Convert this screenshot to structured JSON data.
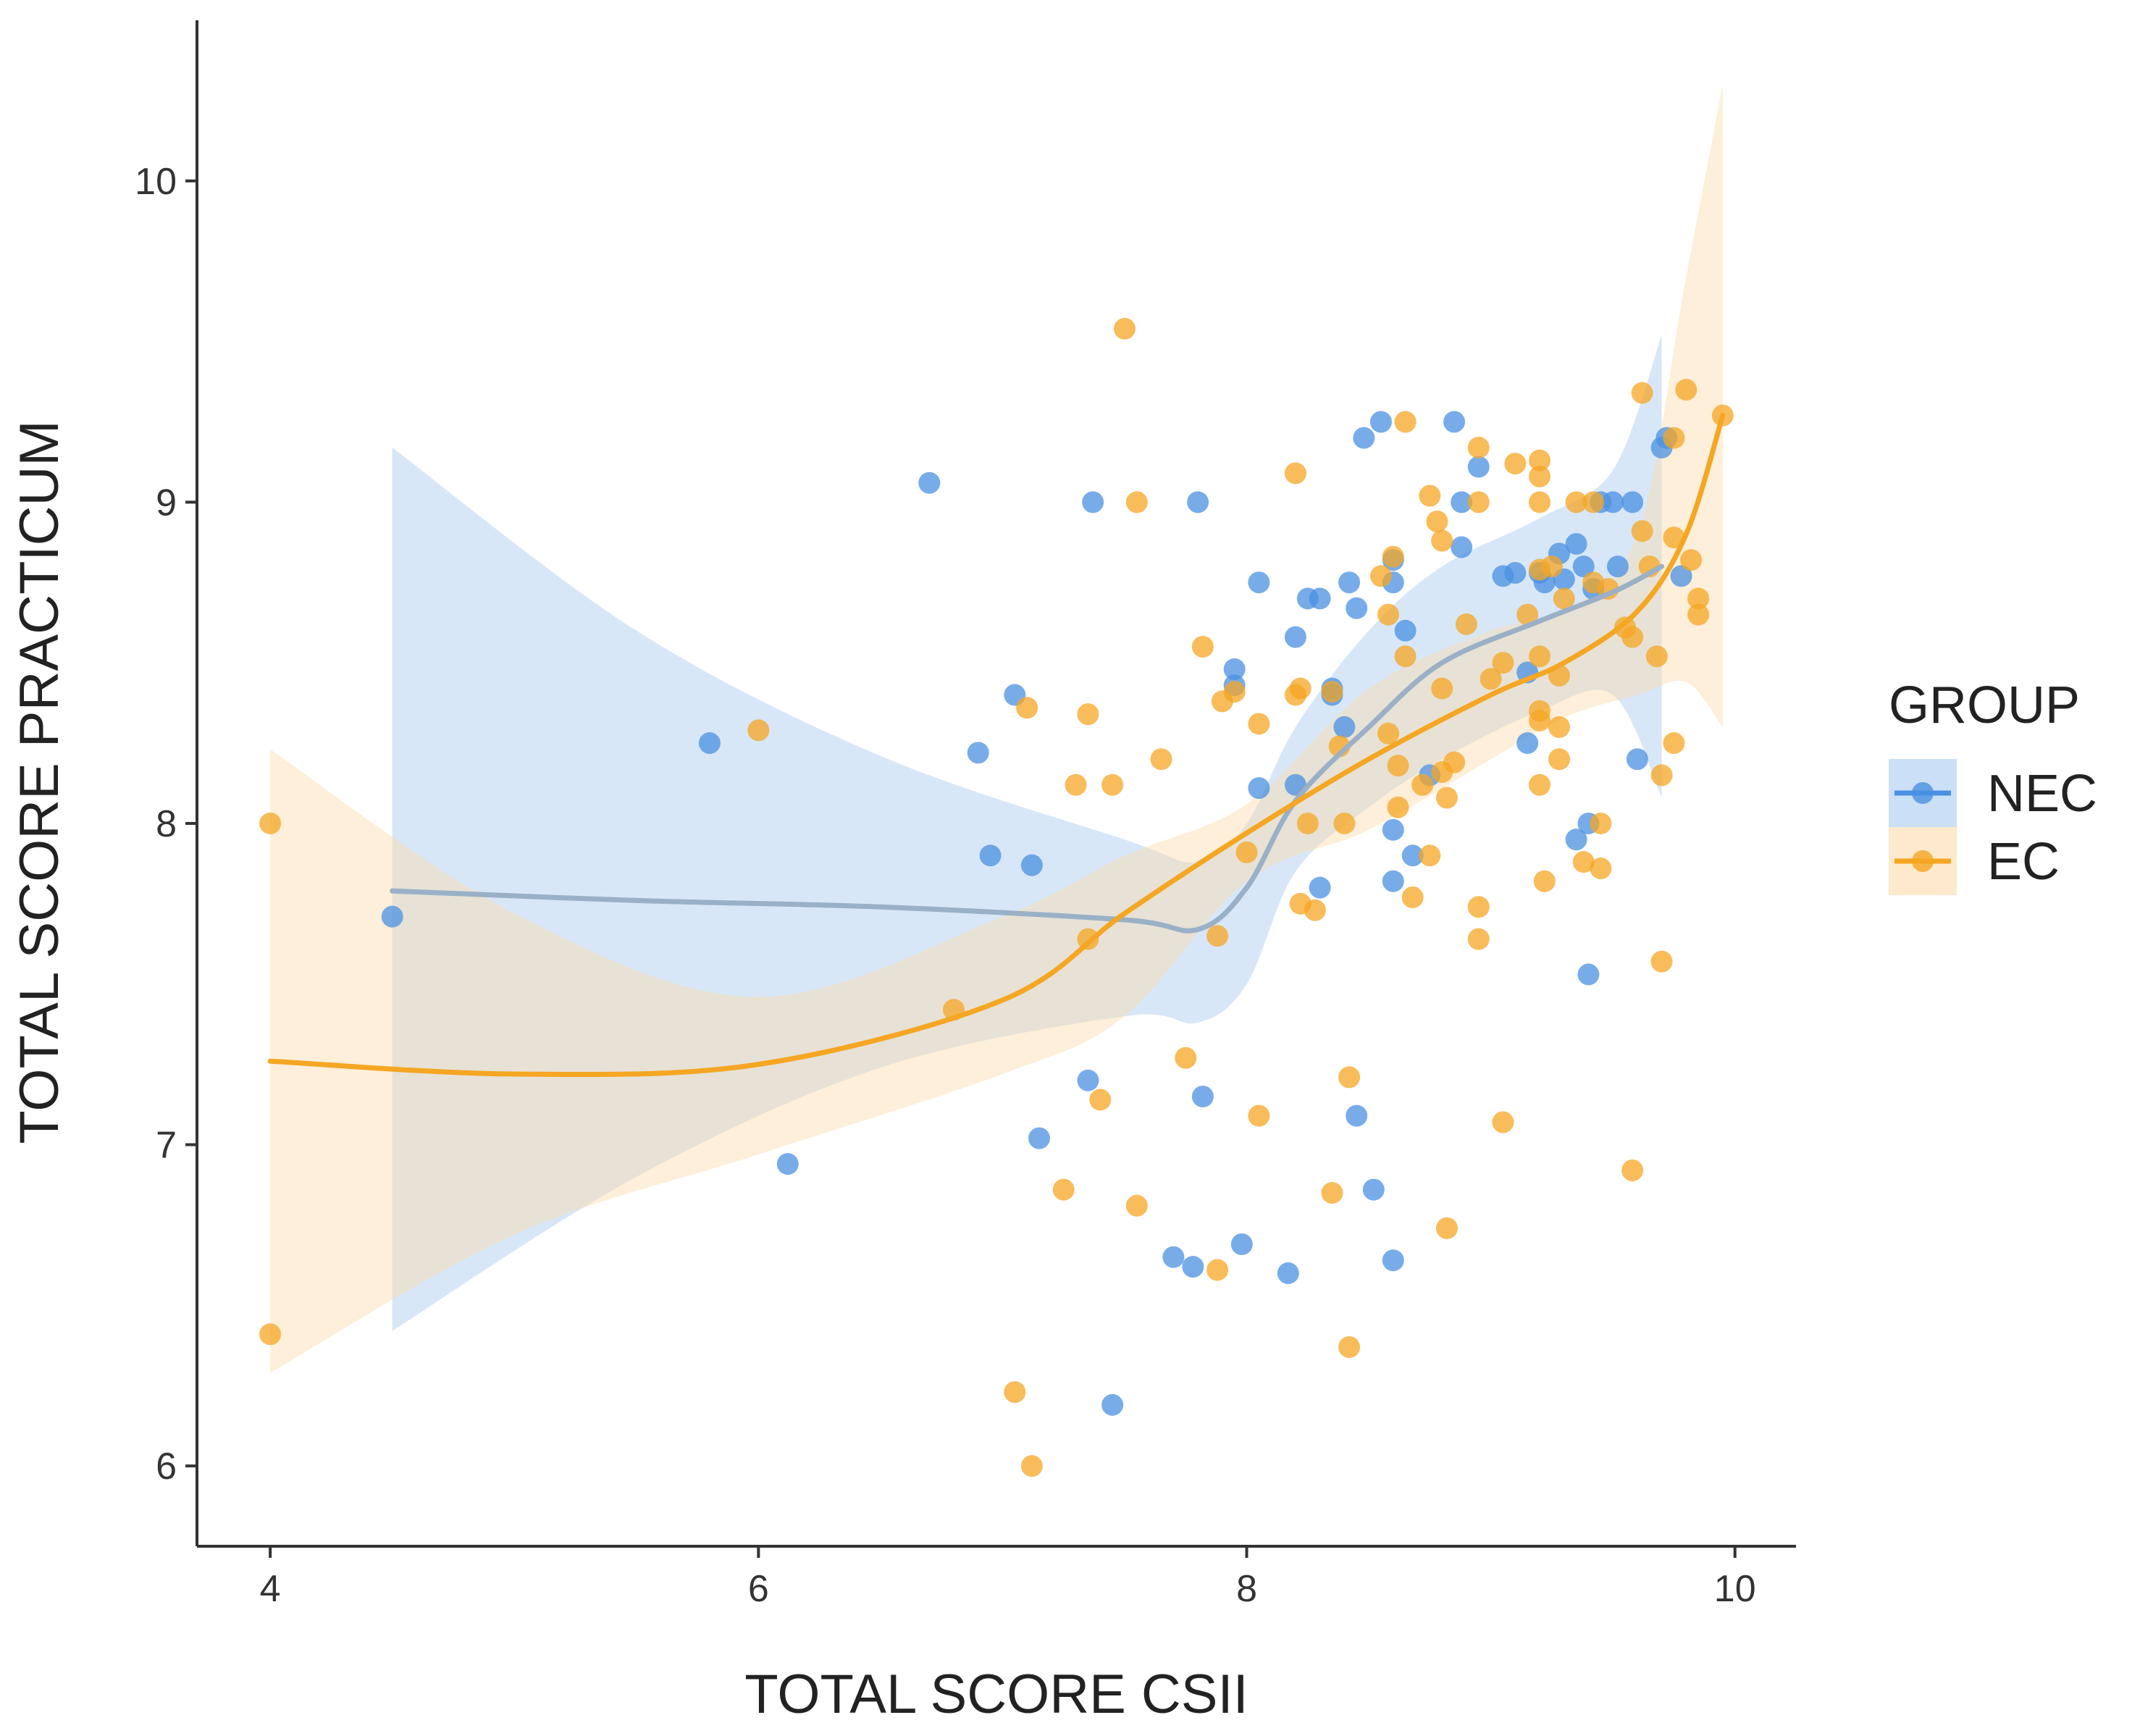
{
  "chart_data": {
    "type": "scatter",
    "xlabel": "TOTAL SCORE CSII",
    "ylabel": "TOTAL SCORE PRACTICUM",
    "xlim": [
      3.7,
      10.25
    ],
    "ylim": [
      5.75,
      10.5
    ],
    "xticks": [
      "4",
      "6",
      "8",
      "10"
    ],
    "yticks": [
      "6",
      "7",
      "8",
      "9",
      "10"
    ],
    "grid": false,
    "legend": {
      "title": "GROUP",
      "position": "right"
    },
    "series": [
      {
        "name": "NEC",
        "color": "#4a90e2",
        "band_color": "#a9c9f0",
        "line_color": "#9ab0c6",
        "points": [
          [
            4.5,
            7.71
          ],
          [
            5.8,
            8.25
          ],
          [
            6.12,
            6.94
          ],
          [
            6.7,
            9.06
          ],
          [
            6.9,
            8.22
          ],
          [
            6.95,
            7.9
          ],
          [
            7.05,
            8.4
          ],
          [
            7.12,
            7.87
          ],
          [
            7.15,
            7.02
          ],
          [
            7.35,
            7.2
          ],
          [
            7.37,
            9.0
          ],
          [
            7.45,
            6.19
          ],
          [
            7.7,
            6.65
          ],
          [
            7.78,
            6.62
          ],
          [
            7.8,
            9.0
          ],
          [
            7.82,
            7.15
          ],
          [
            7.95,
            8.43
          ],
          [
            7.95,
            8.48
          ],
          [
            7.98,
            6.69
          ],
          [
            8.05,
            8.75
          ],
          [
            8.05,
            8.11
          ],
          [
            8.17,
            6.6
          ],
          [
            8.2,
            8.58
          ],
          [
            8.2,
            8.12
          ],
          [
            8.25,
            8.7
          ],
          [
            8.3,
            8.7
          ],
          [
            8.3,
            7.8
          ],
          [
            8.35,
            8.42
          ],
          [
            8.35,
            8.4
          ],
          [
            8.4,
            8.3
          ],
          [
            8.42,
            8.75
          ],
          [
            8.45,
            8.67
          ],
          [
            8.45,
            7.09
          ],
          [
            8.48,
            9.2
          ],
          [
            8.52,
            6.86
          ],
          [
            8.55,
            9.25
          ],
          [
            8.6,
            8.82
          ],
          [
            8.6,
            8.75
          ],
          [
            8.6,
            7.98
          ],
          [
            8.6,
            7.82
          ],
          [
            8.6,
            6.64
          ],
          [
            8.65,
            8.6
          ],
          [
            8.68,
            7.9
          ],
          [
            8.75,
            8.15
          ],
          [
            8.85,
            9.25
          ],
          [
            8.88,
            9.0
          ],
          [
            8.88,
            8.86
          ],
          [
            8.95,
            9.11
          ],
          [
            9.05,
            8.77
          ],
          [
            9.1,
            8.78
          ],
          [
            9.15,
            8.47
          ],
          [
            9.15,
            8.25
          ],
          [
            9.2,
            8.78
          ],
          [
            9.22,
            8.75
          ],
          [
            9.28,
            8.84
          ],
          [
            9.3,
            8.76
          ],
          [
            9.35,
            8.87
          ],
          [
            9.35,
            7.95
          ],
          [
            9.38,
            8.8
          ],
          [
            9.4,
            8.0
          ],
          [
            9.4,
            7.53
          ],
          [
            9.42,
            8.73
          ],
          [
            9.45,
            9.0
          ],
          [
            9.5,
            9.0
          ],
          [
            9.52,
            8.8
          ],
          [
            9.58,
            9.0
          ],
          [
            9.6,
            8.2
          ],
          [
            9.7,
            9.17
          ],
          [
            9.72,
            9.2
          ],
          [
            9.78,
            8.77
          ]
        ],
        "trend": [
          [
            4.5,
            7.79
          ],
          [
            5.5,
            7.76
          ],
          [
            6.5,
            7.74
          ],
          [
            7.5,
            7.7
          ],
          [
            7.8,
            7.67
          ],
          [
            8.0,
            7.8
          ],
          [
            8.2,
            8.07
          ],
          [
            8.5,
            8.3
          ],
          [
            8.8,
            8.5
          ],
          [
            9.2,
            8.63
          ],
          [
            9.5,
            8.72
          ],
          [
            9.7,
            8.8
          ]
        ],
        "band_upper": [
          [
            4.5,
            9.17
          ],
          [
            5.5,
            8.6
          ],
          [
            6.5,
            8.21
          ],
          [
            7.5,
            7.95
          ],
          [
            7.8,
            7.88
          ],
          [
            8.0,
            8.0
          ],
          [
            8.2,
            8.3
          ],
          [
            8.5,
            8.6
          ],
          [
            8.8,
            8.8
          ],
          [
            9.2,
            8.95
          ],
          [
            9.5,
            9.1
          ],
          [
            9.7,
            9.52
          ]
        ],
        "band_lower": [
          [
            4.5,
            6.42
          ],
          [
            5.5,
            6.9
          ],
          [
            6.5,
            7.24
          ],
          [
            7.5,
            7.4
          ],
          [
            7.8,
            7.38
          ],
          [
            8.0,
            7.5
          ],
          [
            8.2,
            7.85
          ],
          [
            8.5,
            8.05
          ],
          [
            8.8,
            8.2
          ],
          [
            9.2,
            8.35
          ],
          [
            9.5,
            8.4
          ],
          [
            9.7,
            8.08
          ]
        ]
      },
      {
        "name": "EC",
        "color": "#f5a623",
        "band_color": "#fbdcaa",
        "line_color": "#f5a623",
        "points": [
          [
            4.0,
            8.0
          ],
          [
            4.0,
            6.41
          ],
          [
            6.0,
            8.29
          ],
          [
            6.8,
            7.42
          ],
          [
            7.05,
            6.23
          ],
          [
            7.1,
            8.36
          ],
          [
            7.12,
            6.0
          ],
          [
            7.25,
            6.86
          ],
          [
            7.3,
            8.12
          ],
          [
            7.35,
            8.34
          ],
          [
            7.35,
            7.64
          ],
          [
            7.4,
            7.14
          ],
          [
            7.45,
            8.12
          ],
          [
            7.5,
            9.54
          ],
          [
            7.55,
            9.0
          ],
          [
            7.55,
            6.81
          ],
          [
            7.65,
            8.2
          ],
          [
            7.75,
            7.27
          ],
          [
            7.82,
            8.55
          ],
          [
            7.88,
            6.61
          ],
          [
            7.88,
            7.65
          ],
          [
            7.9,
            8.38
          ],
          [
            7.95,
            8.41
          ],
          [
            8.0,
            7.91
          ],
          [
            8.05,
            8.31
          ],
          [
            8.05,
            7.09
          ],
          [
            8.2,
            9.09
          ],
          [
            8.2,
            8.4
          ],
          [
            8.22,
            8.42
          ],
          [
            8.22,
            7.75
          ],
          [
            8.25,
            8.0
          ],
          [
            8.28,
            7.73
          ],
          [
            8.35,
            8.41
          ],
          [
            8.35,
            6.85
          ],
          [
            8.38,
            8.24
          ],
          [
            8.4,
            8.0
          ],
          [
            8.42,
            7.21
          ],
          [
            8.42,
            6.37
          ],
          [
            8.55,
            8.77
          ],
          [
            8.58,
            8.65
          ],
          [
            8.58,
            8.28
          ],
          [
            8.6,
            8.83
          ],
          [
            8.62,
            8.05
          ],
          [
            8.62,
            8.18
          ],
          [
            8.65,
            9.25
          ],
          [
            8.65,
            8.52
          ],
          [
            8.68,
            7.77
          ],
          [
            8.72,
            8.12
          ],
          [
            8.75,
            9.02
          ],
          [
            8.75,
            7.9
          ],
          [
            8.78,
            8.94
          ],
          [
            8.8,
            8.88
          ],
          [
            8.8,
            8.42
          ],
          [
            8.8,
            8.16
          ],
          [
            8.82,
            8.08
          ],
          [
            8.82,
            6.74
          ],
          [
            8.85,
            8.19
          ],
          [
            8.9,
            8.62
          ],
          [
            8.95,
            9.17
          ],
          [
            8.95,
            9.0
          ],
          [
            8.95,
            7.74
          ],
          [
            8.95,
            7.64
          ],
          [
            9.0,
            8.45
          ],
          [
            9.05,
            7.07
          ],
          [
            9.05,
            8.5
          ],
          [
            9.1,
            9.12
          ],
          [
            9.15,
            8.65
          ],
          [
            9.2,
            9.13
          ],
          [
            9.2,
            9.08
          ],
          [
            9.2,
            9.0
          ],
          [
            9.2,
            8.79
          ],
          [
            9.2,
            8.52
          ],
          [
            9.2,
            8.35
          ],
          [
            9.2,
            8.32
          ],
          [
            9.2,
            8.12
          ],
          [
            9.22,
            7.82
          ],
          [
            9.25,
            8.8
          ],
          [
            9.28,
            8.46
          ],
          [
            9.28,
            8.3
          ],
          [
            9.28,
            8.2
          ],
          [
            9.3,
            8.7
          ],
          [
            9.35,
            9.0
          ],
          [
            9.38,
            7.88
          ],
          [
            9.42,
            9.0
          ],
          [
            9.42,
            8.75
          ],
          [
            9.45,
            8.0
          ],
          [
            9.45,
            7.86
          ],
          [
            9.48,
            8.73
          ],
          [
            9.55,
            8.61
          ],
          [
            9.58,
            8.58
          ],
          [
            9.58,
            6.92
          ],
          [
            9.62,
            9.34
          ],
          [
            9.62,
            8.91
          ],
          [
            9.65,
            8.8
          ],
          [
            9.68,
            8.52
          ],
          [
            9.7,
            8.15
          ],
          [
            9.7,
            7.57
          ],
          [
            9.75,
            9.2
          ],
          [
            9.75,
            8.89
          ],
          [
            9.75,
            8.25
          ],
          [
            9.8,
            9.35
          ],
          [
            9.82,
            8.82
          ],
          [
            9.85,
            8.7
          ],
          [
            9.85,
            8.65
          ],
          [
            9.95,
            9.27
          ]
        ],
        "trend": [
          [
            4.0,
            7.26
          ],
          [
            5.0,
            7.22
          ],
          [
            6.0,
            7.25
          ],
          [
            7.0,
            7.45
          ],
          [
            7.5,
            7.72
          ],
          [
            8.0,
            7.97
          ],
          [
            8.5,
            8.2
          ],
          [
            9.0,
            8.4
          ],
          [
            9.3,
            8.5
          ],
          [
            9.6,
            8.66
          ],
          [
            9.8,
            8.9
          ],
          [
            9.95,
            9.27
          ]
        ],
        "band_upper": [
          [
            4.0,
            8.23
          ],
          [
            5.0,
            7.72
          ],
          [
            6.0,
            7.46
          ],
          [
            7.0,
            7.71
          ],
          [
            7.5,
            7.9
          ],
          [
            8.0,
            8.06
          ],
          [
            8.5,
            8.42
          ],
          [
            9.0,
            8.6
          ],
          [
            9.3,
            8.66
          ],
          [
            9.6,
            8.9
          ],
          [
            9.8,
            9.7
          ],
          [
            9.95,
            10.3
          ]
        ],
        "band_lower": [
          [
            4.0,
            6.29
          ],
          [
            5.0,
            6.72
          ],
          [
            6.0,
            6.97
          ],
          [
            7.0,
            7.22
          ],
          [
            7.5,
            7.4
          ],
          [
            8.0,
            7.82
          ],
          [
            8.5,
            7.98
          ],
          [
            9.0,
            8.2
          ],
          [
            9.3,
            8.33
          ],
          [
            9.6,
            8.4
          ],
          [
            9.8,
            8.44
          ],
          [
            9.95,
            8.3
          ]
        ]
      }
    ]
  }
}
